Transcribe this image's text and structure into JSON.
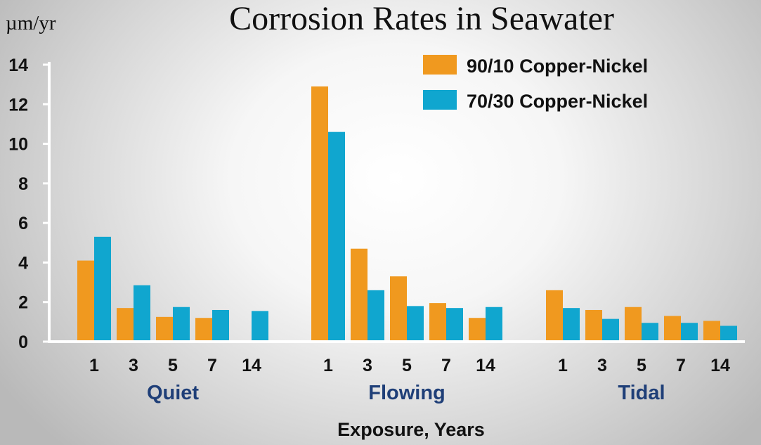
{
  "chart_data": {
    "type": "bar",
    "title": "Corrosion Rates in Seawater",
    "ylabel": "µm/yr",
    "xlabel": "Exposure, Years",
    "ylim": [
      0,
      14
    ],
    "yticks": [
      "0",
      "2",
      "4",
      "6",
      "8",
      "10",
      "12",
      "14"
    ],
    "legend_position": "top-right",
    "groups": [
      {
        "name": "Quiet",
        "categories": [
          "1",
          "3",
          "5",
          "7",
          "14"
        ],
        "series": [
          {
            "name": "90/10 Copper-Nickel",
            "values": [
              4.1,
              1.7,
              1.25,
              1.2,
              null
            ]
          },
          {
            "name": "70/30 Copper-Nickel",
            "values": [
              5.3,
              2.85,
              1.75,
              1.6,
              1.55
            ]
          }
        ]
      },
      {
        "name": "Flowing",
        "categories": [
          "1",
          "3",
          "5",
          "7",
          "14"
        ],
        "series": [
          {
            "name": "90/10 Copper-Nickel",
            "values": [
              12.9,
              4.7,
              3.3,
              1.95,
              1.2
            ]
          },
          {
            "name": "70/30 Copper-Nickel",
            "values": [
              10.6,
              2.6,
              1.8,
              1.7,
              1.75
            ]
          }
        ]
      },
      {
        "name": "Tidal",
        "categories": [
          "1",
          "3",
          "5",
          "7",
          "14"
        ],
        "series": [
          {
            "name": "90/10 Copper-Nickel",
            "values": [
              2.6,
              1.6,
              1.75,
              1.3,
              1.05
            ]
          },
          {
            "name": "70/30 Copper-Nickel",
            "values": [
              1.7,
              1.15,
              0.95,
              0.95,
              0.8
            ]
          }
        ]
      }
    ],
    "legend": [
      "90/10 Copper-Nickel",
      "70/30 Copper-Nickel"
    ],
    "colors": {
      "90/10 Copper-Nickel": "#f0991f",
      "70/30 Copper-Nickel": "#10a6cf"
    }
  }
}
